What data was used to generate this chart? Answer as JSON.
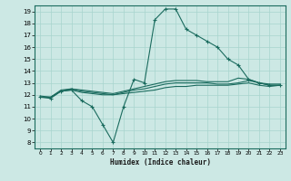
{
  "xlabel": "Humidex (Indice chaleur)",
  "background_color": "#cce8e4",
  "grid_color": "#a8d4ce",
  "line_color": "#1a6b5e",
  "xlim": [
    -0.5,
    23.5
  ],
  "ylim": [
    7.5,
    19.5
  ],
  "xticks": [
    0,
    1,
    2,
    3,
    4,
    5,
    6,
    7,
    8,
    9,
    10,
    11,
    12,
    13,
    14,
    15,
    16,
    17,
    18,
    19,
    20,
    21,
    22,
    23
  ],
  "yticks": [
    8,
    9,
    10,
    11,
    12,
    13,
    14,
    15,
    16,
    17,
    18,
    19
  ],
  "series": [
    {
      "x": [
        0,
        1,
        2,
        3,
        4,
        5,
        6,
        7,
        8,
        9,
        10,
        11,
        12,
        13,
        14,
        15,
        16,
        17,
        18,
        19,
        20,
        21,
        22,
        23
      ],
      "y": [
        11.8,
        11.7,
        12.3,
        12.4,
        11.5,
        11.0,
        9.5,
        8.0,
        11.0,
        13.3,
        13.0,
        18.3,
        19.2,
        19.2,
        17.5,
        17.0,
        16.5,
        16.0,
        15.0,
        14.5,
        13.3,
        13.0,
        12.8,
        12.8
      ],
      "marker": true
    },
    {
      "x": [
        0,
        1,
        2,
        3,
        4,
        5,
        6,
        7,
        8,
        9,
        10,
        11,
        12,
        13,
        14,
        15,
        16,
        17,
        18,
        19,
        20,
        21,
        22,
        23
      ],
      "y": [
        11.8,
        11.8,
        12.3,
        12.4,
        12.2,
        12.1,
        12.0,
        12.0,
        12.1,
        12.2,
        12.3,
        12.4,
        12.6,
        12.7,
        12.7,
        12.8,
        12.8,
        12.8,
        12.8,
        12.9,
        13.0,
        12.8,
        12.7,
        12.8
      ],
      "marker": false
    },
    {
      "x": [
        0,
        1,
        2,
        3,
        4,
        5,
        6,
        7,
        8,
        9,
        10,
        11,
        12,
        13,
        14,
        15,
        16,
        17,
        18,
        19,
        20,
        21,
        22,
        23
      ],
      "y": [
        11.8,
        11.8,
        12.3,
        12.5,
        12.3,
        12.2,
        12.1,
        12.0,
        12.2,
        12.4,
        12.5,
        12.7,
        12.9,
        13.0,
        13.0,
        13.0,
        13.0,
        12.9,
        12.9,
        13.0,
        13.2,
        13.0,
        12.9,
        12.9
      ],
      "marker": false
    },
    {
      "x": [
        0,
        1,
        2,
        3,
        4,
        5,
        6,
        7,
        8,
        9,
        10,
        11,
        12,
        13,
        14,
        15,
        16,
        17,
        18,
        19,
        20,
        21,
        22,
        23
      ],
      "y": [
        11.9,
        11.8,
        12.4,
        12.5,
        12.4,
        12.3,
        12.2,
        12.1,
        12.3,
        12.5,
        12.7,
        12.9,
        13.1,
        13.2,
        13.2,
        13.2,
        13.1,
        13.1,
        13.1,
        13.4,
        13.3,
        13.0,
        12.8,
        12.8
      ],
      "marker": false
    }
  ]
}
